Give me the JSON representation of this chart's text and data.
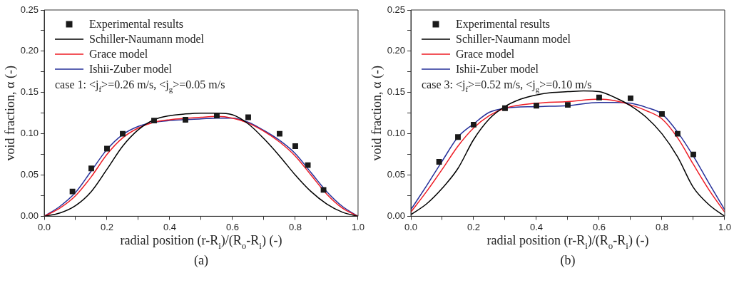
{
  "chart_data": [
    {
      "type": "line",
      "xlabel": "radial position (r-R$_{i}$)/(R$_{o}$-R$_{i}$) (-)",
      "ylabel": "void fraction, α (-)",
      "annotations": [
        "case 1: <j$_{f}$>=0.26 m/s, <j$_{g}$>=0.05 m/s",
        "(a)"
      ],
      "legend": "top left",
      "grid": false,
      "xlim": [
        0,
        1
      ],
      "ylim": [
        0,
        0.25
      ],
      "xticks": [
        {
          "value": 0,
          "label": "0.0"
        },
        {
          "value": 0.1,
          "label": null
        },
        {
          "value": 0.2,
          "label": "0.2"
        },
        {
          "value": 0.3,
          "label": null
        },
        {
          "value": 0.4,
          "label": "0.4"
        },
        {
          "value": 0.5,
          "label": null
        },
        {
          "value": 0.6,
          "label": "0.6"
        },
        {
          "value": 0.7,
          "label": null
        },
        {
          "value": 0.8,
          "label": "0.8"
        },
        {
          "value": 0.9,
          "label": null
        },
        {
          "value": 1,
          "label": "1.0"
        }
      ],
      "yticks": [
        {
          "value": 0,
          "label": "0.00"
        },
        {
          "value": 0.025,
          "label": null
        },
        {
          "value": 0.05,
          "label": "0.05"
        },
        {
          "value": 0.075,
          "label": null
        },
        {
          "value": 0.1,
          "label": "0.10"
        },
        {
          "value": 0.125,
          "label": null
        },
        {
          "value": 0.15,
          "label": "0.15"
        },
        {
          "value": 0.175,
          "label": null
        },
        {
          "value": 0.2,
          "label": "0.20"
        },
        {
          "value": 0.225,
          "label": null
        },
        {
          "value": 0.25,
          "label": "0.25"
        }
      ],
      "series": [
        {
          "name": "Experimental results",
          "type": "scatter",
          "marker": "square",
          "color": "#1a1a1a",
          "x": [
            0.09,
            0.15,
            0.2,
            0.25,
            0.35,
            0.45,
            0.55,
            0.65,
            0.75,
            0.8,
            0.84,
            0.89
          ],
          "values": [
            0.03,
            0.058,
            0.082,
            0.1,
            0.116,
            0.117,
            0.122,
            0.12,
            0.1,
            0.085,
            0.062,
            0.032
          ]
        },
        {
          "name": "Schiller-Naumann model",
          "type": "line",
          "marker": "none",
          "color": "#000000",
          "x": [
            0,
            0.05,
            0.1,
            0.15,
            0.2,
            0.25,
            0.3,
            0.35,
            0.4,
            0.45,
            0.5,
            0.55,
            0.6,
            0.65,
            0.7,
            0.75,
            0.8,
            0.85,
            0.9,
            0.95,
            1
          ],
          "values": [
            0,
            0.004,
            0.013,
            0.03,
            0.057,
            0.085,
            0.105,
            0.117,
            0.122,
            0.124,
            0.125,
            0.125,
            0.123,
            0.112,
            0.094,
            0.073,
            0.05,
            0.03,
            0.015,
            0.005,
            0
          ]
        },
        {
          "name": "Grace model",
          "type": "line",
          "marker": "none",
          "color": "#ee1c25",
          "x": [
            0,
            0.05,
            0.1,
            0.15,
            0.2,
            0.25,
            0.3,
            0.35,
            0.4,
            0.5,
            0.55,
            0.6,
            0.65,
            0.7,
            0.75,
            0.8,
            0.85,
            0.9,
            0.95,
            1
          ],
          "values": [
            0,
            0.01,
            0.025,
            0.048,
            0.075,
            0.095,
            0.107,
            0.114,
            0.117,
            0.12,
            0.121,
            0.119,
            0.113,
            0.103,
            0.09,
            0.073,
            0.05,
            0.027,
            0.01,
            0
          ]
        },
        {
          "name": "Ishii-Zuber model",
          "type": "line",
          "marker": "none",
          "color": "#26309a",
          "x": [
            0,
            0.05,
            0.1,
            0.15,
            0.2,
            0.25,
            0.3,
            0.35,
            0.4,
            0.5,
            0.55,
            0.6,
            0.65,
            0.7,
            0.75,
            0.8,
            0.85,
            0.9,
            0.95,
            1
          ],
          "values": [
            0,
            0.012,
            0.029,
            0.055,
            0.081,
            0.099,
            0.109,
            0.114,
            0.116,
            0.118,
            0.119,
            0.119,
            0.114,
            0.104,
            0.092,
            0.076,
            0.053,
            0.03,
            0.012,
            0
          ]
        }
      ]
    },
    {
      "type": "line",
      "xlabel": "radial position (r-R$_{i}$)/(R$_{o}$-R$_{i}$) (-)",
      "ylabel": "void fraction, α (-)",
      "annotations": [
        "case 3: <j$_{f}$>=0.52 m/s, <j$_{g}$>=0.10 m/s",
        "(b)"
      ],
      "legend": "top left",
      "grid": false,
      "xlim": [
        0,
        1
      ],
      "ylim": [
        0,
        0.25
      ],
      "xticks": [
        {
          "value": 0,
          "label": "0.0"
        },
        {
          "value": 0.1,
          "label": null
        },
        {
          "value": 0.2,
          "label": "0.2"
        },
        {
          "value": 0.3,
          "label": null
        },
        {
          "value": 0.4,
          "label": "0.4"
        },
        {
          "value": 0.5,
          "label": null
        },
        {
          "value": 0.6,
          "label": "0.6"
        },
        {
          "value": 0.7,
          "label": null
        },
        {
          "value": 0.8,
          "label": "0.8"
        },
        {
          "value": 0.9,
          "label": null
        },
        {
          "value": 1,
          "label": "1.0"
        }
      ],
      "yticks": [
        {
          "value": 0,
          "label": "0.00"
        },
        {
          "value": 0.025,
          "label": null
        },
        {
          "value": 0.05,
          "label": "0.05"
        },
        {
          "value": 0.075,
          "label": null
        },
        {
          "value": 0.1,
          "label": "0.10"
        },
        {
          "value": 0.125,
          "label": null
        },
        {
          "value": 0.15,
          "label": "0.15"
        },
        {
          "value": 0.175,
          "label": null
        },
        {
          "value": 0.2,
          "label": "0.20"
        },
        {
          "value": 0.225,
          "label": null
        },
        {
          "value": 0.25,
          "label": "0.25"
        }
      ],
      "series": [
        {
          "name": "Experimental results",
          "type": "scatter",
          "marker": "square",
          "color": "#1a1a1a",
          "x": [
            0.09,
            0.15,
            0.2,
            0.3,
            0.4,
            0.5,
            0.6,
            0.7,
            0.8,
            0.85,
            0.9
          ],
          "values": [
            0.066,
            0.096,
            0.111,
            0.131,
            0.134,
            0.135,
            0.144,
            0.143,
            0.124,
            0.1,
            0.075
          ]
        },
        {
          "name": "Schiller-Naumann model",
          "type": "line",
          "marker": "none",
          "color": "#000000",
          "x": [
            0,
            0.05,
            0.1,
            0.15,
            0.2,
            0.25,
            0.3,
            0.35,
            0.4,
            0.45,
            0.5,
            0.55,
            0.6,
            0.65,
            0.7,
            0.75,
            0.8,
            0.85,
            0.9,
            0.95,
            1
          ],
          "values": [
            0.002,
            0.015,
            0.034,
            0.058,
            0.093,
            0.118,
            0.133,
            0.142,
            0.147,
            0.15,
            0.151,
            0.152,
            0.151,
            0.144,
            0.134,
            0.12,
            0.1,
            0.072,
            0.035,
            0.014,
            0
          ]
        },
        {
          "name": "Grace model",
          "type": "line",
          "marker": "none",
          "color": "#ee1c25",
          "x": [
            0,
            0.05,
            0.1,
            0.15,
            0.2,
            0.25,
            0.3,
            0.4,
            0.5,
            0.6,
            0.65,
            0.7,
            0.75,
            0.8,
            0.85,
            0.9,
            0.95,
            1
          ],
          "values": [
            0.005,
            0.03,
            0.057,
            0.085,
            0.107,
            0.122,
            0.131,
            0.137,
            0.139,
            0.142,
            0.14,
            0.135,
            0.128,
            0.118,
            0.095,
            0.063,
            0.032,
            0.005
          ]
        },
        {
          "name": "Ishii-Zuber model",
          "type": "line",
          "marker": "none",
          "color": "#26309a",
          "x": [
            0,
            0.05,
            0.1,
            0.15,
            0.2,
            0.25,
            0.3,
            0.4,
            0.5,
            0.6,
            0.65,
            0.7,
            0.75,
            0.8,
            0.85,
            0.9,
            0.95,
            1
          ],
          "values": [
            0.008,
            0.037,
            0.067,
            0.096,
            0.112,
            0.126,
            0.131,
            0.133,
            0.134,
            0.138,
            0.138,
            0.137,
            0.132,
            0.124,
            0.102,
            0.073,
            0.04,
            0.008
          ]
        }
      ]
    }
  ]
}
